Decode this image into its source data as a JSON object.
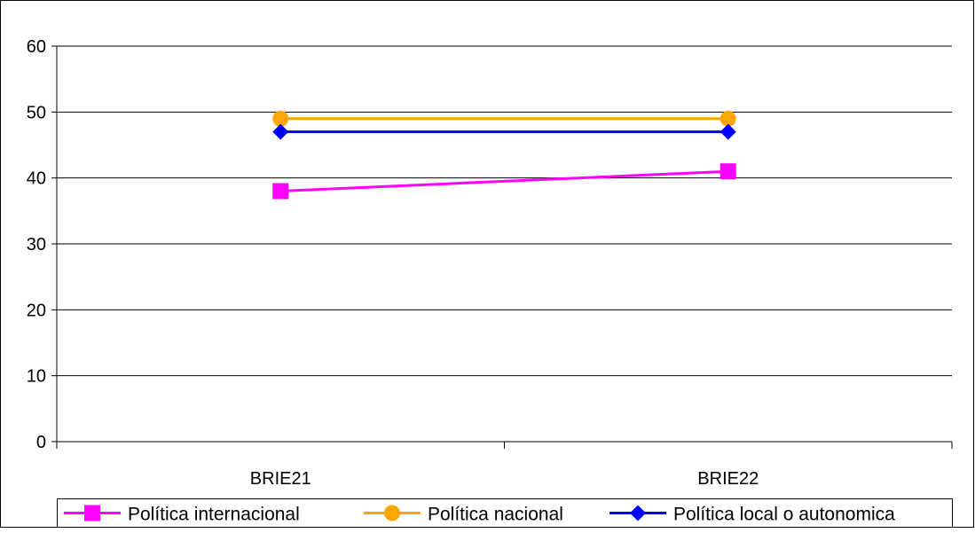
{
  "chart_data": {
    "type": "line",
    "categories": [
      "BRIE21",
      "BRIE22"
    ],
    "ylim": [
      0,
      60
    ],
    "yticks": [
      0,
      10,
      20,
      30,
      40,
      50,
      60
    ],
    "grid": true,
    "legend": "bottom",
    "series": [
      {
        "name": "Política internacional",
        "values": [
          38,
          41
        ],
        "color": "#ff00ff",
        "marker": "square"
      },
      {
        "name": "Política nacional",
        "values": [
          49,
          49
        ],
        "color": "#ffa500",
        "marker": "circle"
      },
      {
        "name": "Política local o autonomica",
        "values": [
          47,
          47
        ],
        "color": "#0000ff",
        "marker": "diamond"
      }
    ]
  }
}
